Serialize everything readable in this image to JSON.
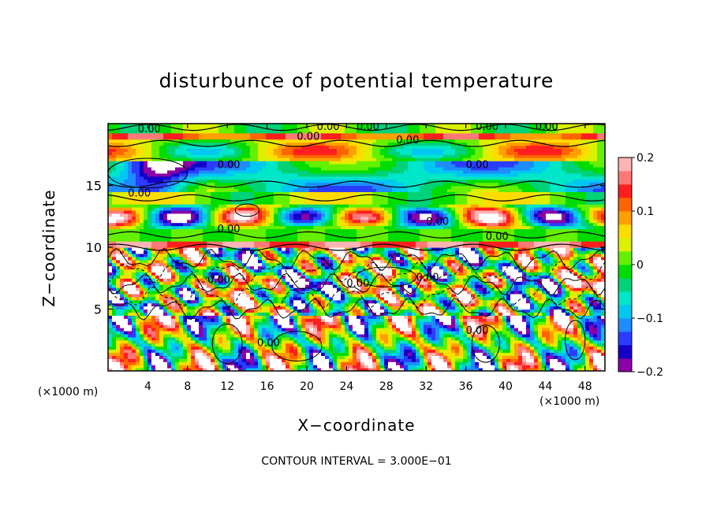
{
  "chart_data": {
    "type": "heatmap",
    "title": "disturbunce of potential temperature",
    "xlabel": "X−coordinate",
    "ylabel": "Z−coordinate",
    "x_unit": "(×1000 m)",
    "xlim": [
      0,
      50
    ],
    "ylim": [
      0,
      20
    ],
    "x_ticks": [
      "4",
      "8",
      "12",
      "16",
      "20",
      "24",
      "28",
      "32",
      "36",
      "40",
      "44",
      "48"
    ],
    "y_ticks": [
      "5",
      "10",
      "15"
    ],
    "contour_label": "0.00",
    "footnote": "CONTOUR INTERVAL = 3.000E−01",
    "colorbar": {
      "min": -0.2,
      "max": 0.2,
      "tick_labels": [
        "0.2",
        "0.1",
        "0",
        "−0.1",
        "−0.2"
      ],
      "colors": [
        "#8b00a6",
        "#1400c8",
        "#2a3cff",
        "#1e8cff",
        "#00c8f0",
        "#00e6c8",
        "#00d278",
        "#00dc00",
        "#64f000",
        "#dcf000",
        "#ffdc00",
        "#ffa000",
        "#ff6400",
        "#ff1e1e",
        "#ff7878",
        "#ffb4b4"
      ]
    }
  }
}
